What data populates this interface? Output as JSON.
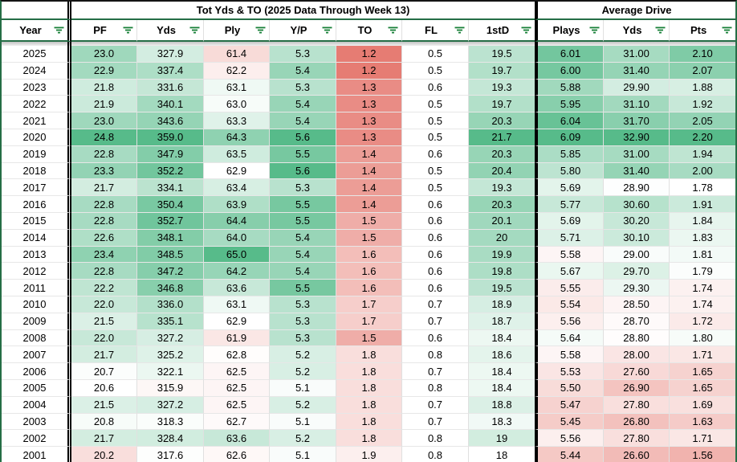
{
  "header": {
    "group_titles": {
      "left": "",
      "mid": "Tot Yds & TO (2025 Data Through Week 13)",
      "right": "Average Drive"
    },
    "columns": [
      {
        "key": "year",
        "label": "Year"
      },
      {
        "key": "pf",
        "label": "PF"
      },
      {
        "key": "yds",
        "label": "Yds"
      },
      {
        "key": "ply",
        "label": "Ply"
      },
      {
        "key": "yp",
        "label": "Y/P"
      },
      {
        "key": "to",
        "label": "TO"
      },
      {
        "key": "fl",
        "label": "FL"
      },
      {
        "key": "firstd",
        "label": "1stD"
      },
      {
        "key": "d_plays",
        "label": "Plays"
      },
      {
        "key": "d_yds",
        "label": "Yds"
      },
      {
        "key": "d_pts",
        "label": "Pts"
      }
    ]
  },
  "rows": [
    {
      "year": "2025",
      "pf": "23.0",
      "yds": "327.9",
      "ply": "61.4",
      "yp": "5.3",
      "to": "1.2",
      "fl": "0.5",
      "firstd": "19.5",
      "d_plays": "6.01",
      "d_yds": "31.00",
      "d_pts": "2.10"
    },
    {
      "year": "2024",
      "pf": "22.9",
      "yds": "337.4",
      "ply": "62.2",
      "yp": "5.4",
      "to": "1.2",
      "fl": "0.5",
      "firstd": "19.7",
      "d_plays": "6.00",
      "d_yds": "31.40",
      "d_pts": "2.07"
    },
    {
      "year": "2023",
      "pf": "21.8",
      "yds": "331.6",
      "ply": "63.1",
      "yp": "5.3",
      "to": "1.3",
      "fl": "0.6",
      "firstd": "19.3",
      "d_plays": "5.88",
      "d_yds": "29.90",
      "d_pts": "1.88"
    },
    {
      "year": "2022",
      "pf": "21.9",
      "yds": "340.1",
      "ply": "63.0",
      "yp": "5.4",
      "to": "1.3",
      "fl": "0.5",
      "firstd": "19.7",
      "d_plays": "5.95",
      "d_yds": "31.10",
      "d_pts": "1.92"
    },
    {
      "year": "2021",
      "pf": "23.0",
      "yds": "343.6",
      "ply": "63.3",
      "yp": "5.4",
      "to": "1.3",
      "fl": "0.5",
      "firstd": "20.3",
      "d_plays": "6.04",
      "d_yds": "31.70",
      "d_pts": "2.05"
    },
    {
      "year": "2020",
      "pf": "24.8",
      "yds": "359.0",
      "ply": "64.3",
      "yp": "5.6",
      "to": "1.3",
      "fl": "0.5",
      "firstd": "21.7",
      "d_plays": "6.09",
      "d_yds": "32.90",
      "d_pts": "2.20"
    },
    {
      "year": "2019",
      "pf": "22.8",
      "yds": "347.9",
      "ply": "63.5",
      "yp": "5.5",
      "to": "1.4",
      "fl": "0.6",
      "firstd": "20.3",
      "d_plays": "5.85",
      "d_yds": "31.00",
      "d_pts": "1.94"
    },
    {
      "year": "2018",
      "pf": "23.3",
      "yds": "352.2",
      "ply": "62.9",
      "yp": "5.6",
      "to": "1.4",
      "fl": "0.5",
      "firstd": "20.4",
      "d_plays": "5.80",
      "d_yds": "31.40",
      "d_pts": "2.00"
    },
    {
      "year": "2017",
      "pf": "21.7",
      "yds": "334.1",
      "ply": "63.4",
      "yp": "5.3",
      "to": "1.4",
      "fl": "0.5",
      "firstd": "19.3",
      "d_plays": "5.69",
      "d_yds": "28.90",
      "d_pts": "1.78"
    },
    {
      "year": "2016",
      "pf": "22.8",
      "yds": "350.4",
      "ply": "63.9",
      "yp": "5.5",
      "to": "1.4",
      "fl": "0.6",
      "firstd": "20.3",
      "d_plays": "5.77",
      "d_yds": "30.60",
      "d_pts": "1.91"
    },
    {
      "year": "2015",
      "pf": "22.8",
      "yds": "352.7",
      "ply": "64.4",
      "yp": "5.5",
      "to": "1.5",
      "fl": "0.6",
      "firstd": "20.1",
      "d_plays": "5.69",
      "d_yds": "30.20",
      "d_pts": "1.84"
    },
    {
      "year": "2014",
      "pf": "22.6",
      "yds": "348.1",
      "ply": "64.0",
      "yp": "5.4",
      "to": "1.5",
      "fl": "0.6",
      "firstd": "20",
      "d_plays": "5.71",
      "d_yds": "30.10",
      "d_pts": "1.83"
    },
    {
      "year": "2013",
      "pf": "23.4",
      "yds": "348.5",
      "ply": "65.0",
      "yp": "5.4",
      "to": "1.6",
      "fl": "0.6",
      "firstd": "19.9",
      "d_plays": "5.58",
      "d_yds": "29.00",
      "d_pts": "1.81"
    },
    {
      "year": "2012",
      "pf": "22.8",
      "yds": "347.2",
      "ply": "64.2",
      "yp": "5.4",
      "to": "1.6",
      "fl": "0.6",
      "firstd": "19.8",
      "d_plays": "5.67",
      "d_yds": "29.70",
      "d_pts": "1.79"
    },
    {
      "year": "2011",
      "pf": "22.2",
      "yds": "346.8",
      "ply": "63.6",
      "yp": "5.5",
      "to": "1.6",
      "fl": "0.6",
      "firstd": "19.5",
      "d_plays": "5.55",
      "d_yds": "29.30",
      "d_pts": "1.74"
    },
    {
      "year": "2010",
      "pf": "22.0",
      "yds": "336.0",
      "ply": "63.1",
      "yp": "5.3",
      "to": "1.7",
      "fl": "0.7",
      "firstd": "18.9",
      "d_plays": "5.54",
      "d_yds": "28.50",
      "d_pts": "1.74"
    },
    {
      "year": "2009",
      "pf": "21.5",
      "yds": "335.1",
      "ply": "62.9",
      "yp": "5.3",
      "to": "1.7",
      "fl": "0.7",
      "firstd": "18.7",
      "d_plays": "5.56",
      "d_yds": "28.70",
      "d_pts": "1.72"
    },
    {
      "year": "2008",
      "pf": "22.0",
      "yds": "327.2",
      "ply": "61.9",
      "yp": "5.3",
      "to": "1.5",
      "fl": "0.6",
      "firstd": "18.4",
      "d_plays": "5.64",
      "d_yds": "28.80",
      "d_pts": "1.80"
    },
    {
      "year": "2007",
      "pf": "21.7",
      "yds": "325.2",
      "ply": "62.8",
      "yp": "5.2",
      "to": "1.8",
      "fl": "0.8",
      "firstd": "18.6",
      "d_plays": "5.58",
      "d_yds": "28.00",
      "d_pts": "1.71"
    },
    {
      "year": "2006",
      "pf": "20.7",
      "yds": "322.1",
      "ply": "62.5",
      "yp": "5.2",
      "to": "1.8",
      "fl": "0.7",
      "firstd": "18.4",
      "d_plays": "5.53",
      "d_yds": "27.60",
      "d_pts": "1.65"
    },
    {
      "year": "2005",
      "pf": "20.6",
      "yds": "315.9",
      "ply": "62.5",
      "yp": "5.1",
      "to": "1.8",
      "fl": "0.8",
      "firstd": "18.4",
      "d_plays": "5.50",
      "d_yds": "26.90",
      "d_pts": "1.65"
    },
    {
      "year": "2004",
      "pf": "21.5",
      "yds": "327.2",
      "ply": "62.5",
      "yp": "5.2",
      "to": "1.8",
      "fl": "0.7",
      "firstd": "18.8",
      "d_plays": "5.47",
      "d_yds": "27.80",
      "d_pts": "1.69"
    },
    {
      "year": "2003",
      "pf": "20.8",
      "yds": "318.3",
      "ply": "62.7",
      "yp": "5.1",
      "to": "1.8",
      "fl": "0.7",
      "firstd": "18.3",
      "d_plays": "5.45",
      "d_yds": "26.80",
      "d_pts": "1.63"
    },
    {
      "year": "2002",
      "pf": "21.7",
      "yds": "328.4",
      "ply": "63.6",
      "yp": "5.2",
      "to": "1.8",
      "fl": "0.8",
      "firstd": "19",
      "d_plays": "5.56",
      "d_yds": "27.80",
      "d_pts": "1.71"
    },
    {
      "year": "2001",
      "pf": "20.2",
      "yds": "317.6",
      "ply": "62.6",
      "yp": "5.1",
      "to": "1.9",
      "fl": "0.8",
      "firstd": "18",
      "d_plays": "5.44",
      "d_yds": "26.60",
      "d_pts": "1.56"
    }
  ],
  "formatting": {
    "palette": {
      "cf_green": "#57bb8a",
      "cf_red": "#e67c73",
      "cf_white": "#ffffff",
      "filter_icon_green": "#188038",
      "border_green": "#256e46",
      "separator_black": "#000000",
      "gridline": "#e0e0e0",
      "gridline_h": "#e7e7e7",
      "text": "#000000"
    },
    "scales": {
      "year": null,
      "pf": {
        "red": 19.0,
        "white": 20.6,
        "green": 24.8
      },
      "yds": {
        "red": 299.0,
        "white": 317.0,
        "green": 359.0
      },
      "ply": {
        "red": 57.5,
        "white": 62.9,
        "green": 65.0
      },
      "yp": {
        "red": 4.56,
        "white": 5.08,
        "green": 5.6
      },
      "to": {
        "red": 1.2,
        "white": 2.0,
        "green": 2.8
      },
      "fl": null,
      "firstd": {
        "red": 14.3,
        "white": 18.0,
        "green": 21.7
      },
      "d_plays": {
        "red": 5.2,
        "white": 5.61,
        "green": 6.09
      },
      "d_yds": {
        "red": 24.5,
        "white": 28.85,
        "green": 32.9
      },
      "d_pts": {
        "red": 1.4,
        "white": 1.78,
        "green": 2.2
      }
    }
  }
}
